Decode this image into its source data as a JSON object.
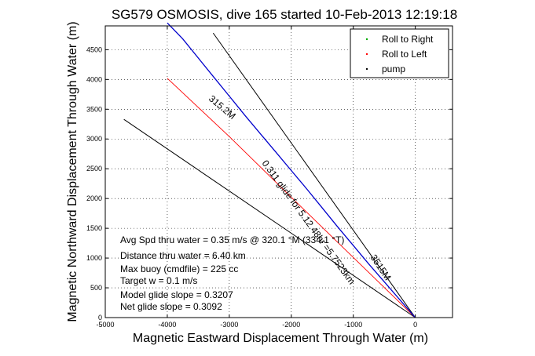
{
  "chart_data": {
    "type": "line",
    "title": "SG579 OSMOSIS, dive 165 started 10-Feb-2013 12:19:18",
    "xlabel": "Magnetic Eastward Displacement Through Water (m)",
    "ylabel": "Magnetic Northward Displacement Through Water (m)",
    "xlim": [
      -5000,
      600
    ],
    "ylim": [
      0,
      4900
    ],
    "xticks": [
      -5000,
      -4000,
      -3000,
      -2000,
      -1000,
      0
    ],
    "yticks": [
      0,
      500,
      1000,
      1500,
      2000,
      2500,
      3000,
      3500,
      4000,
      4500
    ],
    "grid": true,
    "legend": {
      "placement": "top-right",
      "entries": [
        {
          "label": "Roll to Right",
          "color": "#00aa00"
        },
        {
          "label": "Roll to Left",
          "color": "#ff0000"
        },
        {
          "label": "pump",
          "color": "#000000"
        }
      ]
    },
    "series": [
      {
        "color": "#0000cc",
        "x": [
          0,
          -250,
          -500,
          -750,
          -1000,
          -1250,
          -1500,
          -1750,
          -2000,
          -2250,
          -2500,
          -2750,
          -3000,
          -3250,
          -3500,
          -3750,
          -4000
        ],
        "y": [
          0,
          300,
          600,
          900,
          1210,
          1520,
          1840,
          2160,
          2470,
          2780,
          3090,
          3400,
          3720,
          4040,
          4360,
          4680,
          4950
        ]
      },
      {
        "color": "#ff0000",
        "x": [
          -4000,
          -3000,
          -2000,
          -1000,
          0
        ],
        "y": [
          4020,
          3040,
          2020,
          1010,
          0
        ]
      }
    ],
    "reference_lines": [
      {
        "x": [
          0,
          -3260
        ],
        "y": [
          0,
          4780
        ]
      },
      {
        "x": [
          0,
          -4700
        ],
        "y": [
          0,
          3330
        ]
      }
    ],
    "annotations": {
      "stats": [
        "Avg Spd thru water =  0.35 m/s @ 320.1 °M (334.1 °T)",
        "Distance thru water = 6.40 km",
        "Max buoy (cmdfile) = 225 cc",
        "Target w = 0.1 m/s",
        "Model glide slope = 0.3207",
        "Net glide slope = 0.3092"
      ],
      "heading_label": "315.2M",
      "track_label": "0.311 glide for 5.12.48hr =5.7523km",
      "small_label": "3515M"
    }
  }
}
